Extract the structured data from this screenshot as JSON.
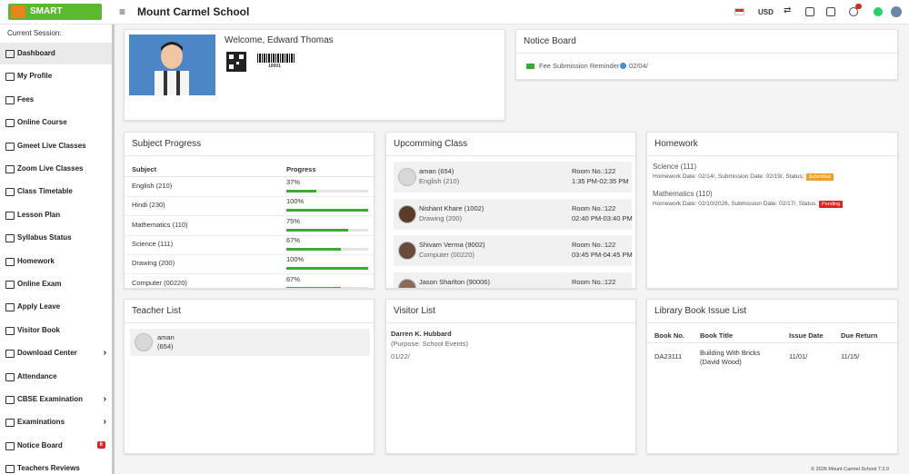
{
  "header": {
    "logo": "SMART SCHOOL",
    "school": "Mount Carmel School",
    "currency": "USD"
  },
  "sidebar": {
    "session_label": "Current Session:",
    "items": [
      {
        "label": "Dashboard",
        "active": true
      },
      {
        "label": "My Profile"
      },
      {
        "label": "Fees"
      },
      {
        "label": "Online Course"
      },
      {
        "label": "Gmeet Live Classes"
      },
      {
        "label": "Zoom Live Classes"
      },
      {
        "label": "Class Timetable"
      },
      {
        "label": "Lesson Plan"
      },
      {
        "label": "Syllabus Status"
      },
      {
        "label": "Homework"
      },
      {
        "label": "Online Exam"
      },
      {
        "label": "Apply Leave"
      },
      {
        "label": "Visitor Book"
      },
      {
        "label": "Download Center",
        "submenu": true
      },
      {
        "label": "Attendance"
      },
      {
        "label": "CBSE Examination",
        "submenu": true
      },
      {
        "label": "Examinations",
        "submenu": true
      },
      {
        "label": "Notice Board",
        "badge": "6"
      },
      {
        "label": "Teachers Reviews"
      }
    ]
  },
  "welcome": {
    "greeting": "Welcome, Edward Thomas",
    "barcode": "10001"
  },
  "notice_board": {
    "title": "Notice Board",
    "items": [
      {
        "text": "Fee Submission Reminder",
        "date": "02/04/"
      }
    ]
  },
  "subject_progress": {
    "title": "Subject Progress",
    "columns": [
      "Subject",
      "Progress"
    ],
    "rows": [
      [
        "English (210)",
        "37%"
      ],
      [
        "Hindi (230)",
        "100%"
      ],
      [
        "Mathematics (110)",
        "75%"
      ],
      [
        "Science (111)",
        "67%"
      ],
      [
        "Drawing (200)",
        "100%"
      ],
      [
        "Computer (00220)",
        "67%"
      ]
    ]
  },
  "upcoming_class": {
    "title": "Upcomming Class",
    "items": [
      {
        "teacher": "aman (654)",
        "subject": "English (210)",
        "room": "Room No.:122",
        "time": "1:35 PM-02:35 PM"
      },
      {
        "teacher": "Nishant Khare (1002)",
        "subject": "Drawing (200)",
        "room": "Room No.:122",
        "time": "02:40 PM-03:40 PM"
      },
      {
        "teacher": "Shivam Verma (9002)",
        "subject": "Computer (00220)",
        "room": "Room No.:122",
        "time": "03:45 PM-04:45 PM"
      },
      {
        "teacher": "Jason Sharlton (90006)",
        "room": "Room No.:122"
      }
    ]
  },
  "homework": {
    "title": "Homework",
    "items": [
      {
        "subject": "Science (111)",
        "details": "Homework Date: 02/14/, Submission Date: 02/19/, Status:",
        "status": "Submitted"
      },
      {
        "subject": "Mathematics (110)",
        "details": "Homework Date: 02/10/2026, Submission Date: 02/17/, Status:",
        "status": "Pending"
      }
    ]
  },
  "teacher_list": {
    "title": "Teacher List",
    "items": [
      {
        "name": "aman",
        "id": "(654)"
      }
    ]
  },
  "visitor_list": {
    "title": "Visitor List",
    "items": [
      {
        "name": "Darren K. Hubbard",
        "purpose": "(Purpose: School Events)",
        "date": "01/22/"
      }
    ]
  },
  "library": {
    "title": "Library Book Issue List",
    "columns": [
      "Book No.",
      "Book Title",
      "Issue Date",
      "Due Return"
    ],
    "rows": [
      [
        "DA23111",
        "Building With Bricks (David Wood)",
        "11/01/",
        "11/15/"
      ]
    ]
  },
  "footer": "© 2026 Mount Carmel School 7.2.0"
}
